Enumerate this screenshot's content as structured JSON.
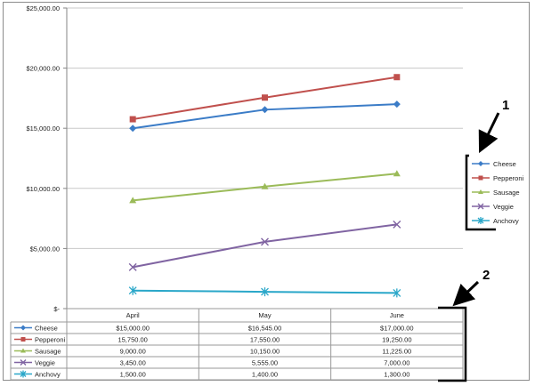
{
  "chart_data": {
    "type": "line",
    "categories": [
      "April",
      "May",
      "June"
    ],
    "ylim": [
      0,
      25000
    ],
    "yticks": [
      0,
      5000,
      10000,
      15000,
      20000,
      25000
    ],
    "ytick_labels": [
      "$-",
      "$5,000.00",
      "$10,000.00",
      "$15,000.00",
      "$20,000.00",
      "$25,000.00"
    ],
    "grid": true,
    "legend_position": "right",
    "series": [
      {
        "name": "Cheese",
        "color": "#3b7cc7",
        "marker": "diamond",
        "values": [
          15000,
          16545,
          17000
        ],
        "table_values": [
          "$15,000.00",
          "$16,545.00",
          "$17,000.00"
        ]
      },
      {
        "name": "Pepperoni",
        "color": "#c0504d",
        "marker": "square",
        "values": [
          15750,
          17550,
          19250
        ],
        "table_values": [
          "15,750.00",
          "17,550.00",
          "19,250.00"
        ]
      },
      {
        "name": "Sausage",
        "color": "#9bbb59",
        "marker": "triangle",
        "values": [
          9000,
          10150,
          11225
        ],
        "table_values": [
          "9,000.00",
          "10,150.00",
          "11,225.00"
        ]
      },
      {
        "name": "Veggie",
        "color": "#8064a2",
        "marker": "x",
        "values": [
          3450,
          5555,
          7000
        ],
        "table_values": [
          "3,450.00",
          "5,555.00",
          "7,000.00"
        ]
      },
      {
        "name": "Anchovy",
        "color": "#2aa7c9",
        "marker": "star",
        "values": [
          1500,
          1400,
          1300
        ],
        "table_values": [
          "1,500.00",
          "1,400.00",
          "1,300.00"
        ]
      }
    ]
  },
  "annotations": [
    {
      "label": "1",
      "target": "legend"
    },
    {
      "label": "2",
      "target": "data-table"
    }
  ],
  "colors": {
    "frame": "#8c8c8c",
    "grid": "#c8c8c8",
    "axis": "#868686",
    "text": "#222222",
    "annotation": "#000000"
  }
}
